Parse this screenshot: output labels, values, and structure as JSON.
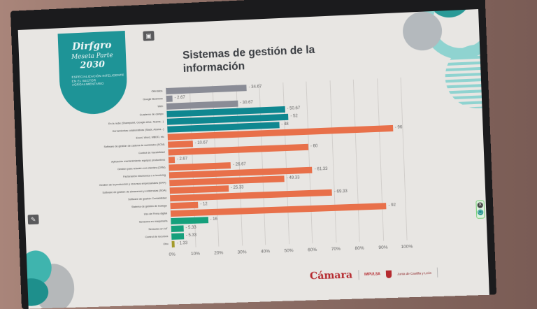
{
  "slide": {
    "title": "Sistemas de gestión de la información",
    "logo": {
      "main": "Dirfgro",
      "sub": "Meseta Parte",
      "year": "2030",
      "description": "ESPECIALIZACIÓN INTELIGENTE EN EL SECTOR AGROALIMENTARIO"
    },
    "footer": {
      "camara": "Cámara",
      "impulsa": "IMPULSA",
      "junta": "Junta de Castilla y León"
    },
    "icons": {
      "toolbar_top": "window-icon",
      "pen": "pen-icon",
      "close": "close-icon",
      "window": "window-icon"
    }
  },
  "chart_data": {
    "type": "bar",
    "orientation": "horizontal",
    "title": "Sistemas de gestión de la información",
    "xlabel": "",
    "ylabel": "",
    "xlim": [
      0,
      100
    ],
    "x_ticks": [
      "0%",
      "10%",
      "20%",
      "30%",
      "40%",
      "50%",
      "60%",
      "70%",
      "80%",
      "90%",
      "100%"
    ],
    "grid": true,
    "legend": "none",
    "categories": [
      "Ofimática",
      "Google Business",
      "Web",
      "Cuaderno de campo",
      "En la nube (Sharepoint, Google drive, Teams...)",
      "Herramientas colaborativas (Slack, Asana...)",
      "Excel, Word, MBDD, etc",
      "Software de gestión de cadena de suministro (SCM)",
      "Control de trazabilidad",
      "Aplicación mantenimiento equipos productivos",
      "Gestión para relación con clientes (CRM)",
      "Facturación electrónica o e-invoicing",
      "Gestión de la producción y recursos empresariales (ERP)",
      "Software de gestión de almacenes y existencias (SGA)",
      "Software de gestión Contabilidad",
      "Sistema de gestión de bodega",
      "Uso de Firma digital",
      "Sensores en maquinaria",
      "Sensores en IoT",
      "Control de recursos",
      "Otro"
    ],
    "values": [
      34.67,
      2.67,
      30.67,
      50.67,
      52,
      48,
      96,
      10.67,
      60,
      2.67,
      26.67,
      61.33,
      49.33,
      25.33,
      69.33,
      12,
      92,
      16,
      5.33,
      5.33,
      1.33
    ],
    "value_labels": [
      "34.67",
      "2.67",
      "30.67",
      "50.67",
      "52",
      "48",
      "96",
      "10.67",
      "60",
      "2.67",
      "26.67",
      "61.33",
      "49.33",
      "25.33",
      "69.33",
      "12",
      "92",
      "16",
      "5.33",
      "5.33",
      "1.33"
    ],
    "groups": [
      "gray",
      "gray",
      "gray",
      "teal",
      "teal",
      "teal",
      "orange",
      "orange",
      "orange",
      "orange",
      "orange",
      "orange",
      "orange",
      "orange",
      "orange",
      "orange",
      "orange",
      "green",
      "green",
      "green",
      "olive"
    ],
    "colors": {
      "gray": "#8a8c96",
      "teal": "#0f8790",
      "orange": "#e8704a",
      "green": "#16a07c",
      "olive": "#a39a2a"
    }
  }
}
